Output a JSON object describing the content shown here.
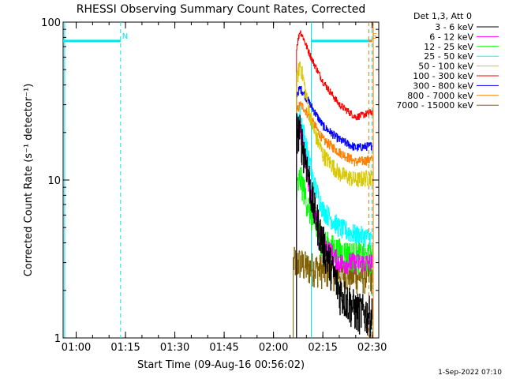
{
  "chart_data": {
    "type": "line",
    "title": "RHESSI Observing Summary Count Rates, Corrected",
    "xlabel": "Start Time (09-Aug-16 00:56:02)",
    "ylabel": "Corrected Count Rate (s⁻¹ detector⁻¹)",
    "y_scale": "log",
    "ylim": [
      1,
      100
    ],
    "xlim": [
      "00:56:02",
      "02:32:00"
    ],
    "x_ticks": [
      "01:00",
      "01:15",
      "01:30",
      "01:45",
      "02:00",
      "02:15",
      "02:30"
    ],
    "y_ticks": [
      "1",
      "10",
      "100"
    ],
    "legend_title": "Det 1,3, Att 0",
    "legend_position": "top-right",
    "footer": "1-Sep-2022 07:10",
    "annotations": [
      {
        "text": "N",
        "time": "01:13:00",
        "color": "#00e5ee"
      },
      {
        "text": "S",
        "time": "02:29:00",
        "color": "#ff8000"
      }
    ],
    "bands": [
      {
        "name": "night",
        "color": "#00e5ee",
        "level": 76,
        "ranges": [
          [
            "00:56:02",
            "01:13:30"
          ],
          [
            "02:11:30",
            "02:30:00"
          ]
        ]
      },
      {
        "name": "saa",
        "color": "#ff8000",
        "level": 76,
        "ranges": [
          [
            "02:29:00",
            "02:30:00"
          ]
        ]
      }
    ],
    "vlines": [
      {
        "time": "00:56:30",
        "color": "#00e5ee",
        "style": "solid"
      },
      {
        "time": "01:13:30",
        "color": "#00e5ee",
        "style": "dashed"
      },
      {
        "time": "02:11:30",
        "color": "#00e5ee",
        "style": "solid"
      },
      {
        "time": "02:29:00",
        "color": "#ff8000",
        "style": "dashed"
      },
      {
        "time": "02:30:00",
        "color": "#00e5ee",
        "style": "dashed"
      },
      {
        "time": "02:30:20",
        "color": "#ff8000",
        "style": "solid"
      }
    ],
    "series": [
      {
        "name": "3 - 6 keV",
        "color": "#000000",
        "x": [
          "02:07:00",
          "02:08:00",
          "02:09:00",
          "02:10:00",
          "02:12:00",
          "02:15:00",
          "02:20:00",
          "02:25:00",
          "02:30:00"
        ],
        "values": [
          21,
          20,
          16,
          13,
          7,
          4,
          2,
          1.5,
          1.4
        ],
        "noise": 0.3
      },
      {
        "name": "6 - 12 keV",
        "color": "#ff00ff",
        "x": [
          "02:07:00",
          "02:08:00",
          "02:09:00",
          "02:10:00",
          "02:12:00",
          "02:15:00",
          "02:20:00",
          "02:25:00",
          "02:30:00"
        ],
        "values": [
          23,
          22,
          16,
          12,
          6.5,
          4,
          3,
          3,
          3
        ],
        "noise": 0.15
      },
      {
        "name": "12 - 25 keV",
        "color": "#00ff00",
        "x": [
          "02:07:00",
          "02:08:00",
          "02:09:00",
          "02:10:00",
          "02:12:00",
          "02:15:00",
          "02:20:00",
          "02:25:00",
          "02:30:00"
        ],
        "values": [
          8.5,
          10.5,
          9,
          7.5,
          5.5,
          4,
          3.5,
          3.3,
          3.2
        ],
        "noise": 0.22
      },
      {
        "name": "25 - 50 keV",
        "color": "#00ffff",
        "x": [
          "02:07:00",
          "02:08:00",
          "02:09:00",
          "02:10:00",
          "02:12:00",
          "02:15:00",
          "02:20:00",
          "02:25:00",
          "02:30:00"
        ],
        "values": [
          23,
          26,
          21,
          16,
          10,
          6.5,
          5,
          4.5,
          4.3
        ],
        "noise": 0.15
      },
      {
        "name": "50 - 100 keV",
        "color": "#d8c800",
        "x": [
          "02:07:00",
          "02:08:00",
          "02:09:00",
          "02:10:00",
          "02:12:00",
          "02:15:00",
          "02:20:00",
          "02:25:00",
          "02:30:00"
        ],
        "values": [
          42,
          55,
          44,
          33,
          21,
          14.5,
          11,
          10,
          10.5
        ],
        "noise": 0.12
      },
      {
        "name": "100 - 300 keV",
        "color": "#ff0000",
        "x": [
          "02:07:00",
          "02:08:00",
          "02:09:00",
          "02:10:00",
          "02:12:00",
          "02:15:00",
          "02:20:00",
          "02:25:00",
          "02:30:00"
        ],
        "values": [
          70,
          88,
          80,
          70,
          56,
          42,
          30,
          25,
          27
        ],
        "noise": 0.05
      },
      {
        "name": "300 - 800 keV",
        "color": "#0000ff",
        "x": [
          "02:07:00",
          "02:08:00",
          "02:09:00",
          "02:10:00",
          "02:12:00",
          "02:15:00",
          "02:20:00",
          "02:25:00",
          "02:30:00"
        ],
        "values": [
          35,
          38,
          36,
          33,
          28,
          22,
          18,
          16,
          16.5
        ],
        "noise": 0.06
      },
      {
        "name": "800 - 7000 keV",
        "color": "#ff8000",
        "x": [
          "02:07:00",
          "02:08:00",
          "02:09:00",
          "02:10:00",
          "02:12:00",
          "02:15:00",
          "02:20:00",
          "02:25:00",
          "02:30:00"
        ],
        "values": [
          27,
          30,
          29,
          27,
          23,
          18,
          15,
          13,
          13.5
        ],
        "noise": 0.07
      },
      {
        "name": "7000 - 15000 keV",
        "color": "#806000",
        "x": [
          "02:06:00",
          "02:08:00",
          "02:10:00",
          "02:12:00",
          "02:15:00",
          "02:20:00",
          "02:25:00",
          "02:30:00"
        ],
        "values": [
          3,
          3,
          2.8,
          2.8,
          2.7,
          2.6,
          2.5,
          2.5
        ],
        "noise": 0.25
      }
    ]
  }
}
